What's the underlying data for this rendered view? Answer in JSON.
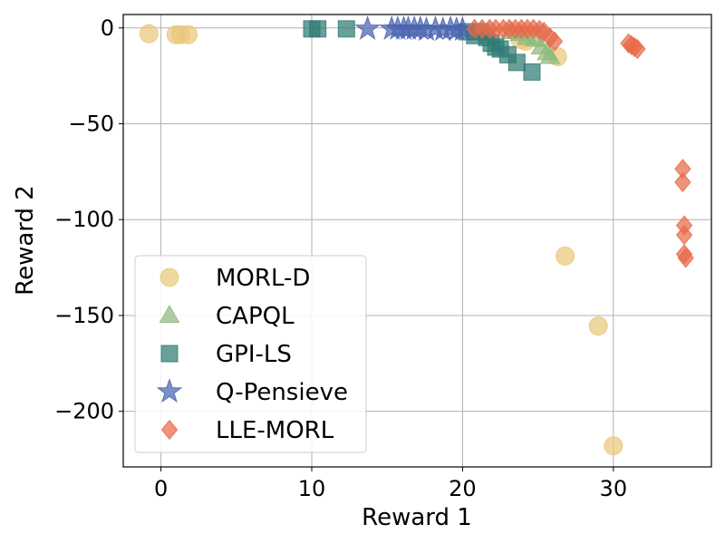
{
  "chart_data": {
    "type": "scatter",
    "title": "",
    "xlabel": "Reward 1",
    "ylabel": "Reward 2",
    "xlim": [
      -2.5,
      36.5
    ],
    "ylim": [
      -229,
      7
    ],
    "grid": true,
    "xticks": [
      0,
      10,
      20,
      30
    ],
    "xtick_labels": [
      "0",
      "10",
      "20",
      "30"
    ],
    "yticks": [
      0,
      -50,
      -100,
      -150,
      -200
    ],
    "ytick_labels": [
      "0",
      "−50",
      "−100",
      "−150",
      "−200"
    ],
    "legend_position": "lower-left",
    "series": [
      {
        "name": "MORL-D",
        "marker": "circle",
        "color": "#e9c77b",
        "points": [
          [
            -0.8,
            -3
          ],
          [
            1.0,
            -3.5
          ],
          [
            1.3,
            -3.5
          ],
          [
            1.8,
            -3.5
          ],
          [
            23.8,
            -6
          ],
          [
            24.2,
            -7
          ],
          [
            26.3,
            -15
          ],
          [
            26.8,
            -119
          ],
          [
            29.0,
            -155.5
          ],
          [
            30.0,
            -218
          ]
        ]
      },
      {
        "name": "CAPQL",
        "marker": "triangle",
        "color": "#8fb97a",
        "points": [
          [
            23.2,
            -2
          ],
          [
            23.8,
            -3
          ],
          [
            24.3,
            -5
          ],
          [
            24.8,
            -6
          ],
          [
            25.2,
            -10
          ],
          [
            25.6,
            -13
          ],
          [
            25.8,
            -15
          ]
        ]
      },
      {
        "name": "GPI-LS",
        "marker": "square",
        "color": "#2f7c74",
        "points": [
          [
            10.0,
            -0.5
          ],
          [
            10.4,
            -0.5
          ],
          [
            12.3,
            -0.5
          ],
          [
            20.3,
            -2
          ],
          [
            20.8,
            -4
          ],
          [
            21.2,
            -2
          ],
          [
            21.6,
            -5
          ],
          [
            21.9,
            -8
          ],
          [
            22.2,
            -10
          ],
          [
            22.5,
            -11
          ],
          [
            23.0,
            -14
          ],
          [
            23.6,
            -18
          ],
          [
            24.6,
            -23
          ]
        ]
      },
      {
        "name": "Q-Pensieve",
        "marker": "star",
        "color": "#4a64b0",
        "points": [
          [
            13.7,
            -0.5
          ],
          [
            15.3,
            -0.5
          ],
          [
            15.7,
            -0.5
          ],
          [
            16.1,
            -0.5
          ],
          [
            16.4,
            -0.5
          ],
          [
            16.8,
            -0.5
          ],
          [
            17.2,
            -0.5
          ],
          [
            17.6,
            -1
          ],
          [
            18.2,
            -0.5
          ],
          [
            18.7,
            -1
          ],
          [
            19.2,
            -0.5
          ],
          [
            19.6,
            -1
          ],
          [
            20.0,
            -1
          ]
        ]
      },
      {
        "name": "LLE-MORL",
        "marker": "diamond",
        "color": "#e8694a",
        "points": [
          [
            20.8,
            -0.5
          ],
          [
            21.3,
            -0.5
          ],
          [
            21.8,
            -0.5
          ],
          [
            22.2,
            -0.5
          ],
          [
            22.7,
            -0.5
          ],
          [
            23.1,
            -0.5
          ],
          [
            23.5,
            -0.5
          ],
          [
            23.9,
            -0.5
          ],
          [
            24.3,
            -0.5
          ],
          [
            24.7,
            -0.5
          ],
          [
            25.1,
            -1
          ],
          [
            25.4,
            -2
          ],
          [
            25.8,
            -5
          ],
          [
            26.1,
            -7
          ],
          [
            31.0,
            -8
          ],
          [
            31.2,
            -9
          ],
          [
            31.4,
            -10
          ],
          [
            31.6,
            -11
          ],
          [
            34.6,
            -73.5
          ],
          [
            34.6,
            -80.5
          ],
          [
            34.7,
            -103
          ],
          [
            34.7,
            -108
          ],
          [
            34.7,
            -118
          ],
          [
            34.8,
            -120
          ]
        ]
      }
    ]
  }
}
